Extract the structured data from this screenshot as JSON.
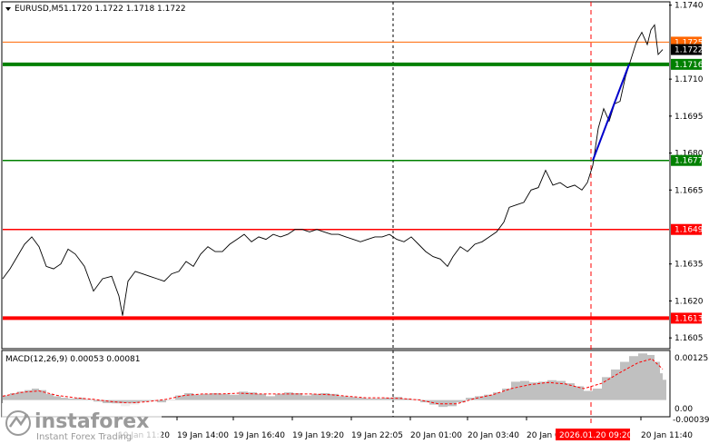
{
  "header": {
    "symbol": "EURUSD,M5",
    "ohlc": "1.1720 1.1722 1.1718 1.1722"
  },
  "macd": {
    "label": "MACD(12,26,9) 0.00053 0.00081",
    "ticks": [
      "0.00125",
      "0.00",
      "-0.00039"
    ]
  },
  "current_time_label": "2026.01.20 09:20",
  "watermark": {
    "brand": "instaforex",
    "tagline": "Instant Forex Trading"
  },
  "colors": {
    "green": "#008000",
    "red": "#ff0000",
    "orange": "#ff6600",
    "black": "#000000",
    "blue": "#0000cc",
    "histogram": "#c0c0c0",
    "signal": "#ff0000"
  },
  "chart_data": {
    "type": "line",
    "symbol": "EURUSD",
    "timeframe": "M5",
    "ylim": [
      1.1601,
      1.1741
    ],
    "y_ticks": [
      "1.1740",
      "1.1710",
      "1.1695",
      "1.1680",
      "1.1665",
      "1.1635",
      "1.1620",
      "1.1605"
    ],
    "x_ticks": [
      "19 Jan 11:20",
      "19 Jan 14:00",
      "19 Jan 16:40",
      "19 Jan 19:20",
      "19 Jan 22:05",
      "20 Jan 01:00",
      "20 Jan 03:40",
      "20 Jan 0",
      "20 Jan 11:40"
    ],
    "price_series": [
      [
        0,
        1.1629
      ],
      [
        8,
        1.1633
      ],
      [
        16,
        1.1638
      ],
      [
        24,
        1.1643
      ],
      [
        32,
        1.1646
      ],
      [
        40,
        1.1642
      ],
      [
        48,
        1.1634
      ],
      [
        56,
        1.1633
      ],
      [
        64,
        1.1635
      ],
      [
        72,
        1.1641
      ],
      [
        80,
        1.1639
      ],
      [
        90,
        1.1634
      ],
      [
        100,
        1.1624
      ],
      [
        110,
        1.1629
      ],
      [
        120,
        1.163
      ],
      [
        128,
        1.1622
      ],
      [
        132,
        1.1614
      ],
      [
        138,
        1.1628
      ],
      [
        146,
        1.1632
      ],
      [
        154,
        1.1631
      ],
      [
        162,
        1.163
      ],
      [
        170,
        1.1629
      ],
      [
        178,
        1.1628
      ],
      [
        186,
        1.1631
      ],
      [
        194,
        1.1632
      ],
      [
        202,
        1.1636
      ],
      [
        210,
        1.1634
      ],
      [
        218,
        1.1639
      ],
      [
        226,
        1.1642
      ],
      [
        234,
        1.164
      ],
      [
        242,
        1.164
      ],
      [
        250,
        1.1643
      ],
      [
        258,
        1.1645
      ],
      [
        266,
        1.1647
      ],
      [
        274,
        1.1644
      ],
      [
        282,
        1.1646
      ],
      [
        290,
        1.1645
      ],
      [
        298,
        1.1647
      ],
      [
        306,
        1.1646
      ],
      [
        314,
        1.1647
      ],
      [
        322,
        1.1649
      ],
      [
        330,
        1.1649
      ],
      [
        338,
        1.1648
      ],
      [
        346,
        1.1649
      ],
      [
        354,
        1.1648
      ],
      [
        362,
        1.1647
      ],
      [
        370,
        1.1647
      ],
      [
        378,
        1.1646
      ],
      [
        386,
        1.1645
      ],
      [
        394,
        1.1644
      ],
      [
        402,
        1.1645
      ],
      [
        410,
        1.1646
      ],
      [
        418,
        1.1646
      ],
      [
        426,
        1.1647
      ],
      [
        434,
        1.1645
      ],
      [
        442,
        1.1644
      ],
      [
        450,
        1.1646
      ],
      [
        458,
        1.1643
      ],
      [
        466,
        1.164
      ],
      [
        474,
        1.1638
      ],
      [
        482,
        1.1637
      ],
      [
        490,
        1.1634
      ],
      [
        496,
        1.1638
      ],
      [
        504,
        1.1642
      ],
      [
        512,
        1.164
      ],
      [
        520,
        1.1643
      ],
      [
        528,
        1.1644
      ],
      [
        536,
        1.1646
      ],
      [
        544,
        1.1648
      ],
      [
        552,
        1.1652
      ],
      [
        558,
        1.1658
      ],
      [
        566,
        1.1659
      ],
      [
        574,
        1.166
      ],
      [
        582,
        1.1665
      ],
      [
        590,
        1.1666
      ],
      [
        598,
        1.1673
      ],
      [
        606,
        1.1667
      ],
      [
        614,
        1.1668
      ],
      [
        622,
        1.1666
      ],
      [
        630,
        1.1667
      ],
      [
        638,
        1.1665
      ],
      [
        644,
        1.1668
      ],
      [
        650,
        1.1675
      ],
      [
        656,
        1.169
      ],
      [
        662,
        1.1698
      ],
      [
        668,
        1.1693
      ],
      [
        674,
        1.17
      ],
      [
        680,
        1.1701
      ],
      [
        686,
        1.1711
      ],
      [
        692,
        1.1718
      ],
      [
        698,
        1.1725
      ],
      [
        704,
        1.1729
      ],
      [
        710,
        1.1724
      ],
      [
        714,
        1.173
      ],
      [
        718,
        1.1732
      ],
      [
        722,
        1.172
      ],
      [
        727,
        1.1722
      ]
    ],
    "levels": [
      {
        "label": "1.1725",
        "value": 1.1725,
        "color": "#ff6600",
        "width": 1
      },
      {
        "label": "1.1716",
        "value": 1.1716,
        "color": "#008000",
        "width": 4
      },
      {
        "label": "1.1677",
        "value": 1.1677,
        "color": "#008000",
        "width": 1.5
      },
      {
        "label": "1.1649",
        "value": 1.1649,
        "color": "#ff0000",
        "width": 1.5
      },
      {
        "label": "1.1613",
        "value": 1.1613,
        "color": "#ff0000",
        "width": 4
      }
    ],
    "current_price": {
      "label": "1.1722",
      "value": 1.1722
    },
    "trend_line": {
      "from": [
        650,
        1.1677
      ],
      "to": [
        690,
        1.1716
      ],
      "color": "#0000cc"
    },
    "macd": {
      "ylim": [
        -0.00039,
        0.00125
      ],
      "histogram": [
        [
          0,
          0.00012
        ],
        [
          8,
          0.00018
        ],
        [
          16,
          0.00022
        ],
        [
          24,
          0.00026
        ],
        [
          32,
          0.0003
        ],
        [
          40,
          0.00026
        ],
        [
          48,
          0.00016
        ],
        [
          56,
          0.0001
        ],
        [
          64,
          6e-05
        ],
        [
          72,
          4e-05
        ],
        [
          80,
          6e-05
        ],
        [
          90,
          2e-05
        ],
        [
          100,
          -4e-05
        ],
        [
          110,
          -8e-05
        ],
        [
          120,
          -0.0001
        ],
        [
          130,
          -0.00016
        ],
        [
          140,
          -0.00012
        ],
        [
          150,
          -4e-05
        ],
        [
          160,
          -2e-05
        ],
        [
          170,
          -6e-05
        ],
        [
          180,
          0.0
        ],
        [
          190,
          0.00012
        ],
        [
          200,
          0.00018
        ],
        [
          210,
          0.00014
        ],
        [
          220,
          0.00016
        ],
        [
          230,
          0.00018
        ],
        [
          240,
          0.00016
        ],
        [
          250,
          0.00014
        ],
        [
          260,
          0.00022
        ],
        [
          270,
          0.0002
        ],
        [
          280,
          0.00016
        ],
        [
          290,
          0.0001
        ],
        [
          300,
          0.00016
        ],
        [
          310,
          0.0002
        ],
        [
          320,
          0.00018
        ],
        [
          330,
          0.00012
        ],
        [
          340,
          0.00016
        ],
        [
          350,
          0.00018
        ],
        [
          360,
          0.00016
        ],
        [
          370,
          0.0001
        ],
        [
          380,
          8e-05
        ],
        [
          390,
          6e-05
        ],
        [
          400,
          4e-05
        ],
        [
          410,
          4e-05
        ],
        [
          420,
          6e-05
        ],
        [
          430,
          8e-05
        ],
        [
          440,
          4e-05
        ],
        [
          450,
          2e-05
        ],
        [
          460,
          -6e-05
        ],
        [
          470,
          -0.00012
        ],
        [
          480,
          -0.00018
        ],
        [
          490,
          -0.00016
        ],
        [
          500,
          -6e-05
        ],
        [
          510,
          6e-05
        ],
        [
          520,
          0.0001
        ],
        [
          530,
          0.00014
        ],
        [
          540,
          0.0002
        ],
        [
          550,
          0.0003
        ],
        [
          560,
          0.00048
        ],
        [
          570,
          0.0005
        ],
        [
          580,
          0.00046
        ],
        [
          590,
          0.00048
        ],
        [
          600,
          0.00052
        ],
        [
          610,
          0.0005
        ],
        [
          620,
          0.00044
        ],
        [
          630,
          0.00036
        ],
        [
          640,
          0.00024
        ],
        [
          650,
          0.0003
        ],
        [
          660,
          0.0006
        ],
        [
          670,
          0.0008
        ],
        [
          680,
          0.001
        ],
        [
          690,
          0.00115
        ],
        [
          700,
          0.00122
        ],
        [
          710,
          0.00118
        ],
        [
          718,
          0.001
        ],
        [
          724,
          0.0007
        ],
        [
          727,
          0.00053
        ]
      ],
      "signal": [
        [
          0,
          0.0001
        ],
        [
          20,
          0.0002
        ],
        [
          40,
          0.00024
        ],
        [
          60,
          0.00012
        ],
        [
          80,
          6e-05
        ],
        [
          100,
          2e-05
        ],
        [
          120,
          -4e-05
        ],
        [
          140,
          -8e-05
        ],
        [
          160,
          -4e-05
        ],
        [
          180,
          2e-05
        ],
        [
          200,
          0.00012
        ],
        [
          220,
          0.00016
        ],
        [
          240,
          0.00016
        ],
        [
          260,
          0.00018
        ],
        [
          280,
          0.00016
        ],
        [
          300,
          0.00016
        ],
        [
          320,
          0.00016
        ],
        [
          340,
          0.00016
        ],
        [
          360,
          0.00014
        ],
        [
          380,
          0.0001
        ],
        [
          400,
          6e-05
        ],
        [
          420,
          6e-05
        ],
        [
          440,
          4e-05
        ],
        [
          460,
          0.0
        ],
        [
          480,
          -0.0001
        ],
        [
          500,
          -0.0001
        ],
        [
          520,
          4e-05
        ],
        [
          540,
          0.00014
        ],
        [
          560,
          0.0003
        ],
        [
          580,
          0.0004
        ],
        [
          600,
          0.00046
        ],
        [
          620,
          0.00042
        ],
        [
          640,
          0.0003
        ],
        [
          660,
          0.00044
        ],
        [
          680,
          0.00072
        ],
        [
          700,
          0.00098
        ],
        [
          715,
          0.00108
        ],
        [
          727,
          0.00081
        ]
      ]
    }
  }
}
